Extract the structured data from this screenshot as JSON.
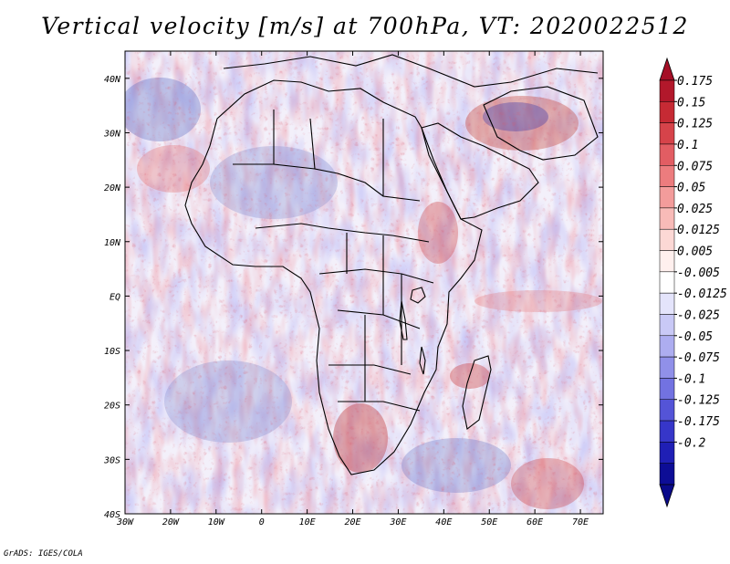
{
  "title": "Vertical velocity [m/s] at 700hPa, VT: 2020022512",
  "credit": "GrADS: IGES/COLA",
  "map": {
    "lon_range": [
      -30,
      75
    ],
    "lat_range": [
      -40,
      45
    ],
    "lon_ticks": [
      {
        "value": -30,
        "label": "30W"
      },
      {
        "value": -20,
        "label": "20W"
      },
      {
        "value": -10,
        "label": "10W"
      },
      {
        "value": 0,
        "label": "0"
      },
      {
        "value": 10,
        "label": "10E"
      },
      {
        "value": 20,
        "label": "20E"
      },
      {
        "value": 30,
        "label": "30E"
      },
      {
        "value": 40,
        "label": "40E"
      },
      {
        "value": 50,
        "label": "50E"
      },
      {
        "value": 60,
        "label": "60E"
      },
      {
        "value": 70,
        "label": "70E"
      }
    ],
    "lat_ticks": [
      {
        "value": 40,
        "label": "40N"
      },
      {
        "value": 30,
        "label": "30N"
      },
      {
        "value": 20,
        "label": "20N"
      },
      {
        "value": 10,
        "label": "10N"
      },
      {
        "value": 0,
        "label": "EQ"
      },
      {
        "value": -10,
        "label": "10S"
      },
      {
        "value": -20,
        "label": "20S"
      },
      {
        "value": -30,
        "label": "30S"
      },
      {
        "value": -40,
        "label": "40S"
      }
    ]
  },
  "colorbar": {
    "labels": [
      "0.175",
      "0.15",
      "0.125",
      "0.1",
      "0.075",
      "0.05",
      "0.025",
      "0.0125",
      "0.005",
      "-0.005",
      "-0.0125",
      "-0.025",
      "-0.05",
      "-0.075",
      "-0.1",
      "-0.125",
      "-0.175",
      "-0.2"
    ],
    "colors": [
      "#b2182b",
      "#c62a34",
      "#d6434a",
      "#e25d63",
      "#ec7c7e",
      "#f39c9b",
      "#f8bbb8",
      "#fcd8d5",
      "#fff0ee",
      "#ffffff",
      "#e4e4fb",
      "#c9c9f6",
      "#adadf0",
      "#9090e9",
      "#7272e1",
      "#5454d7",
      "#3636c9",
      "#1f1fb5",
      "#0d0d96"
    ],
    "top_color": "#a50f26",
    "bottom_color": "#0a0a8a"
  },
  "colors": {
    "ocean_base": "#f3f0fa",
    "coast": "#000000"
  }
}
